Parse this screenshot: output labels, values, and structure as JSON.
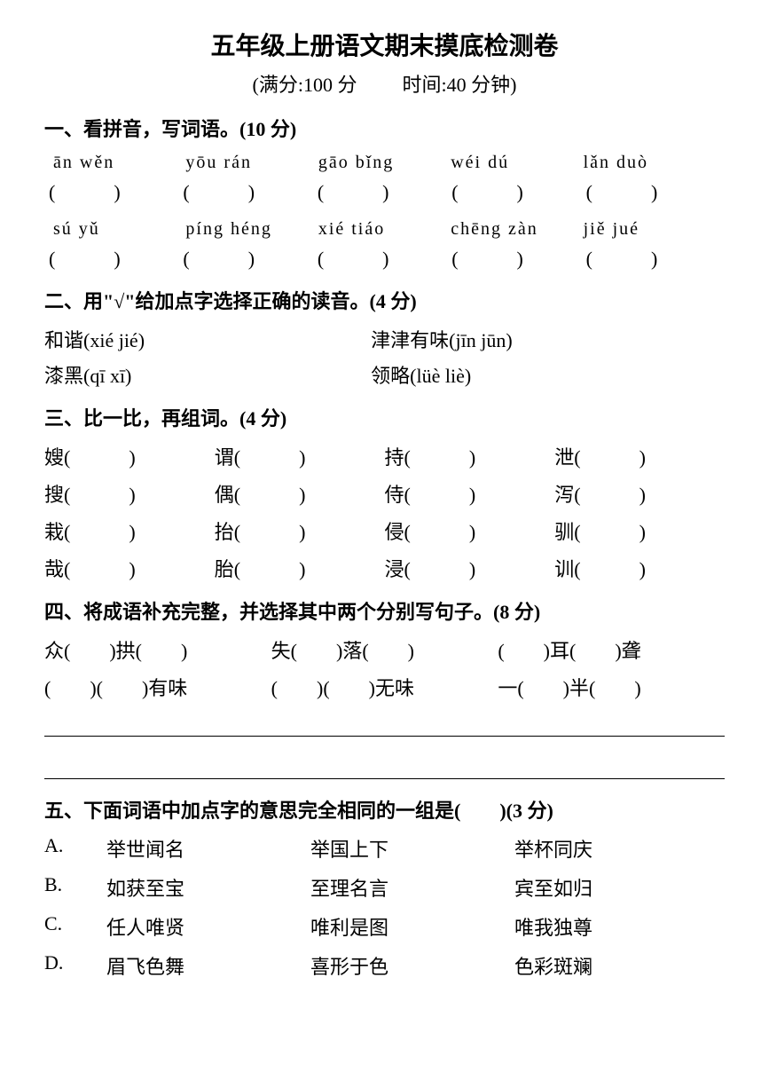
{
  "title": "五年级上册语文期末摸底检测卷",
  "subtitle_left": "(满分:100 分",
  "subtitle_right": "时间:40 分钟)",
  "section1": {
    "title": "一、看拼音，写词语。(10 分)",
    "row1_pinyin": [
      "ān wěn",
      "yōu rán",
      "gāo bǐng",
      "wéi dú",
      "lǎn duò"
    ],
    "row2_pinyin": [
      "sú yǔ",
      "píng héng",
      "xié tiáo",
      "chēng zàn",
      "jiě jué"
    ],
    "paren": "(　　　)"
  },
  "section2": {
    "title": "二、用\"√\"给加点字选择正确的读音。(4 分)",
    "items": [
      {
        "left": "和谐(xié  jié)",
        "right": "津津有味(jīn  jūn)"
      },
      {
        "left": "漆黑(qī  xī)",
        "right": "领略(lüè  liè)"
      }
    ]
  },
  "section3": {
    "title": "三、比一比，再组词。(4 分)",
    "rows": [
      [
        "嫂(　　　)",
        "谓(　　　)",
        "持(　　　)",
        "泄(　　　)"
      ],
      [
        "搜(　　　)",
        "偶(　　　)",
        "侍(　　　)",
        "泻(　　　)"
      ],
      [
        "栽(　　　)",
        "抬(　　　)",
        "侵(　　　)",
        "驯(　　　)"
      ],
      [
        "哉(　　　)",
        "胎(　　　)",
        "浸(　　　)",
        "训(　　　)"
      ]
    ]
  },
  "section4": {
    "title": "四、将成语补充完整，并选择其中两个分别写句子。(8 分)",
    "row1": [
      "众(　　)拱(　　)",
      "失(　　)落(　　)",
      "(　　)耳(　　)聋"
    ],
    "row2": [
      "(　　)(　　)有味",
      "(　　)(　　)无味",
      "一(　　)半(　　)"
    ]
  },
  "section5": {
    "title": "五、下面词语中加点字的意思完全相同的一组是(　　)(3 分)",
    "options": [
      {
        "label": "A.",
        "words": [
          "举世闻名",
          "举国上下",
          "举杯同庆"
        ]
      },
      {
        "label": "B.",
        "words": [
          "如获至宝",
          "至理名言",
          "宾至如归"
        ]
      },
      {
        "label": "C.",
        "words": [
          "任人唯贤",
          "唯利是图",
          "唯我独尊"
        ]
      },
      {
        "label": "D.",
        "words": [
          "眉飞色舞",
          "喜形于色",
          "色彩斑斓"
        ]
      }
    ]
  }
}
